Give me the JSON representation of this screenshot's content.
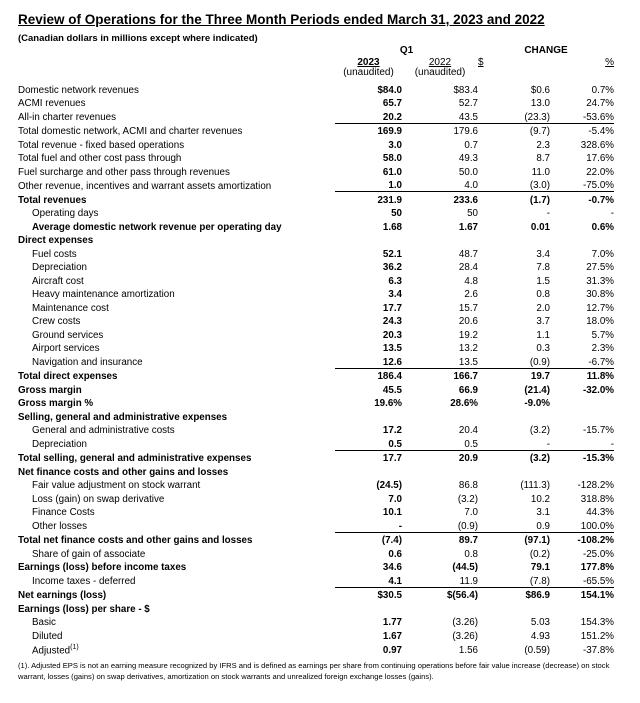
{
  "header": {
    "title": "Review of Operations for the Three Month Periods ended March 31, 2023 and 2022",
    "subtitle": "(Canadian dollars in millions except where indicated)"
  },
  "table": {
    "group_headers": [
      "Q1",
      "CHANGE"
    ],
    "columns": [
      {
        "label": "2023",
        "sub": "(unaudited)"
      },
      {
        "label": "2022",
        "sub": "(unaudited)"
      },
      {
        "label": "$"
      },
      {
        "label": "%"
      }
    ],
    "rows": [
      {
        "label": "Domestic network revenues",
        "values": [
          "$84.0",
          "$83.4",
          "$0.6",
          "0.7%"
        ]
      },
      {
        "label": "ACMI revenues",
        "values": [
          "65.7",
          "52.7",
          "13.0",
          "24.7%"
        ]
      },
      {
        "label": "All-in charter revenues",
        "values": [
          "20.2",
          "43.5",
          "(23.3)",
          "-53.6%"
        ]
      },
      {
        "label": "Total domestic network, ACMI and charter revenues",
        "values": [
          "169.9",
          "179.6",
          "(9.7)",
          "-5.4%"
        ]
      },
      {
        "label": "Total revenue - fixed based operations",
        "values": [
          "3.0",
          "0.7",
          "2.3",
          "328.6%"
        ]
      },
      {
        "label": "Total fuel and other cost pass through",
        "values": [
          "58.0",
          "49.3",
          "8.7",
          "17.6%"
        ]
      },
      {
        "label": "Fuel surcharge and other pass through revenues",
        "values": [
          "61.0",
          "50.0",
          "11.0",
          "22.0%"
        ]
      },
      {
        "label": "Other revenue, incentives and warrant assets amortization",
        "values": [
          "1.0",
          "4.0",
          "(3.0)",
          "-75.0%"
        ]
      },
      {
        "label": "Total revenues",
        "values": [
          "231.9",
          "233.6",
          "(1.7)",
          "-0.7%"
        ]
      },
      {
        "label": "Operating days",
        "values": [
          "50",
          "50",
          "-",
          "-"
        ]
      },
      {
        "label": "Average domestic network revenue per operating day",
        "values": [
          "1.68",
          "1.67",
          "0.01",
          "0.6%"
        ]
      },
      {
        "label": "Direct expenses"
      },
      {
        "label": "Fuel costs",
        "values": [
          "52.1",
          "48.7",
          "3.4",
          "7.0%"
        ]
      },
      {
        "label": "Depreciation",
        "values": [
          "36.2",
          "28.4",
          "7.8",
          "27.5%"
        ]
      },
      {
        "label": "Aircraft cost",
        "values": [
          "6.3",
          "4.8",
          "1.5",
          "31.3%"
        ]
      },
      {
        "label": "Heavy maintenance amortization",
        "values": [
          "3.4",
          "2.6",
          "0.8",
          "30.8%"
        ]
      },
      {
        "label": "Maintenance cost",
        "values": [
          "17.7",
          "15.7",
          "2.0",
          "12.7%"
        ]
      },
      {
        "label": "Crew costs",
        "values": [
          "24.3",
          "20.6",
          "3.7",
          "18.0%"
        ]
      },
      {
        "label": "Ground services",
        "values": [
          "20.3",
          "19.2",
          "1.1",
          "5.7%"
        ]
      },
      {
        "label": "Airport services",
        "values": [
          "13.5",
          "13.2",
          "0.3",
          "2.3%"
        ]
      },
      {
        "label": "Navigation and insurance",
        "values": [
          "12.6",
          "13.5",
          "(0.9)",
          "-6.7%"
        ]
      },
      {
        "label": "Total direct expenses",
        "values": [
          "186.4",
          "166.7",
          "19.7",
          "11.8%"
        ]
      },
      {
        "label": "Gross margin",
        "values": [
          "45.5",
          "66.9",
          "(21.4)",
          "-32.0%"
        ]
      },
      {
        "label": "Gross margin %",
        "values": [
          "19.6%",
          "28.6%",
          "-9.0%"
        ]
      },
      {
        "label": "Selling, general and administrative expenses"
      },
      {
        "label": "General and administrative costs",
        "values": [
          "17.2",
          "20.4",
          "(3.2)",
          "-15.7%"
        ]
      },
      {
        "label": "Depreciation",
        "values": [
          "0.5",
          "0.5",
          "-",
          "-"
        ]
      },
      {
        "label": "Total selling, general and administrative expenses",
        "values": [
          "17.7",
          "20.9",
          "(3.2)",
          "-15.3%"
        ]
      },
      {
        "label": "Net finance costs and other gains and losses"
      },
      {
        "label": "Fair value adjustment on stock warrant",
        "values": [
          "(24.5)",
          "86.8",
          "(111.3)",
          "-128.2%"
        ]
      },
      {
        "label": "Loss (gain) on swap derivative",
        "values": [
          "7.0",
          "(3.2)",
          "10.2",
          "318.8%"
        ]
      },
      {
        "label": "Finance Costs",
        "values": [
          "10.1",
          "7.0",
          "3.1",
          "44.3%"
        ]
      },
      {
        "label": "Other losses",
        "values": [
          "-",
          "(0.9)",
          "0.9",
          "100.0%"
        ]
      },
      {
        "label": "Total net finance costs and other gains and losses",
        "values": [
          "(7.4)",
          "89.7",
          "(97.1)",
          "-108.2%"
        ]
      },
      {
        "label": "Share of gain of associate",
        "values": [
          "0.6",
          "0.8",
          "(0.2)",
          "-25.0%"
        ]
      },
      {
        "label": "Earnings (loss) before income taxes",
        "values": [
          "34.6",
          "(44.5)",
          "79.1",
          "177.8%"
        ]
      },
      {
        "label": "Income taxes - deferred",
        "values": [
          "4.1",
          "11.9",
          "(7.8)",
          "-65.5%"
        ]
      },
      {
        "label": "Net earnings (loss)",
        "values": [
          "$30.5",
          "$(56.4)",
          "$86.9",
          "154.1%"
        ]
      },
      {
        "label": "Earnings (loss) per share - $"
      },
      {
        "label": "Basic",
        "values": [
          "1.77",
          "(3.26)",
          "5.03",
          "154.3%"
        ]
      },
      {
        "label": "Diluted",
        "values": [
          "1.67",
          "(3.26)",
          "4.93",
          "151.2%"
        ]
      },
      {
        "label": "Adjusted",
        "note": "(1)",
        "values": [
          "0.97",
          "1.56",
          "(0.59)",
          "-37.8%"
        ]
      }
    ]
  },
  "footnote": "(1). Adjusted EPS is not an earning measure recognized by IFRS and is defined as earnings per share from continuing operations before fair value increase (decrease) on stock warrant, losses (gains) on swap derivatives, amortization on stock warrants and unrealized foreign exchange losses (gains)."
}
